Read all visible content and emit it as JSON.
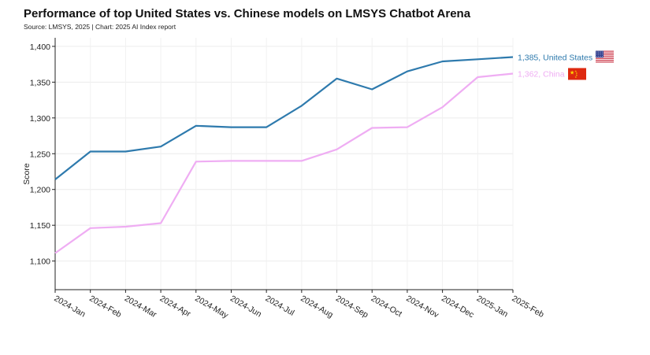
{
  "header": {
    "title": "Performance of top United States vs. Chinese models on LMSYS Chatbot Arena",
    "source": "Source: LMSYS, 2025 | Chart: 2025 AI Index report"
  },
  "chart_data": {
    "type": "line",
    "ylabel": "Score",
    "xlabel": "",
    "ylim": [
      1060,
      1412
    ],
    "yticks": [
      1100,
      1150,
      1200,
      1250,
      1300,
      1350,
      1400
    ],
    "ytick_labels": [
      "1,100",
      "1,150",
      "1,200",
      "1,250",
      "1,300",
      "1,350",
      "1,400"
    ],
    "categories": [
      "2024-Jan",
      "2024-Feb",
      "2024-Mar",
      "2024-Apr",
      "2024-May",
      "2024-Jun",
      "2024-Jul",
      "2024-Aug",
      "2024-Sep",
      "2024-Oct",
      "2024-Nov",
      "2024-Dec",
      "2025-Jan",
      "2025-Feb"
    ],
    "grid": true,
    "series": [
      {
        "name": "United States",
        "color": "#2e7aad",
        "end_label": "1,385, United States",
        "flag_icon": "us-flag-icon",
        "values": [
          1214,
          1253,
          1253,
          1260,
          1289,
          1287,
          1287,
          1317,
          1355,
          1340,
          1365,
          1379,
          1382,
          1385
        ]
      },
      {
        "name": "China",
        "color": "#efadf3",
        "end_label": "1,362, China",
        "flag_icon": "china-flag-icon",
        "values": [
          1111,
          1146,
          1148,
          1153,
          1239,
          1240,
          1240,
          1240,
          1256,
          1286,
          1287,
          1315,
          1357,
          1362
        ]
      }
    ]
  }
}
